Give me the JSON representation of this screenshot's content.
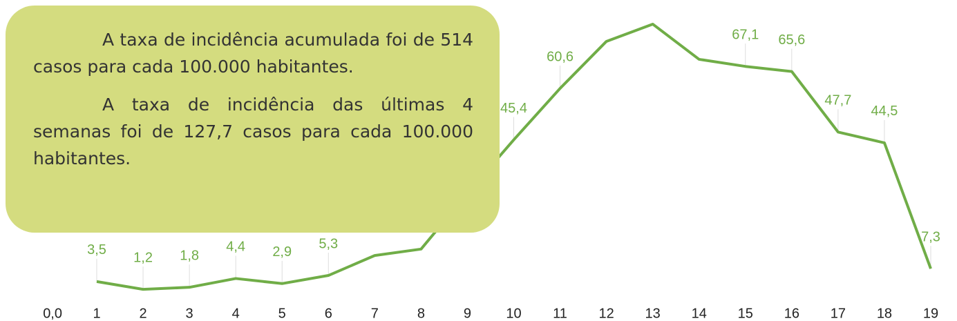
{
  "chart_data": {
    "type": "line",
    "categories": [
      "1",
      "2",
      "3",
      "4",
      "5",
      "6",
      "7",
      "8",
      "9",
      "10",
      "11",
      "12",
      "13",
      "14",
      "15",
      "16",
      "17",
      "18",
      "19"
    ],
    "series": [
      {
        "color": "#70ad47",
        "values": [
          3.5,
          1.2,
          1.8,
          4.4,
          2.9,
          5.3,
          11.2,
          13.1,
          29.6,
          45.4,
          60.6,
          74.5,
          79.6,
          69.2,
          67.1,
          65.6,
          47.7,
          44.5,
          7.3
        ],
        "value_labels": [
          "3,5",
          "1,2",
          "1,8",
          "4,4",
          "2,9",
          "5,3",
          null,
          null,
          null,
          "45,4",
          "60,6",
          null,
          null,
          null,
          "67,1",
          "65,6",
          "47,7",
          "44,5",
          "7,3"
        ]
      }
    ],
    "ylim": [
      0,
      80
    ],
    "yticks": [
      {
        "value": 0,
        "label": "0,0"
      }
    ]
  },
  "callout": {
    "paragraphs": [
      "A taxa de incidência acumulada foi de 514 casos para cada 100.000 habitantes.",
      "A taxa de incidência das últimas 4 semanas foi de 127,7 casos para cada 100.000 habitantes."
    ]
  }
}
